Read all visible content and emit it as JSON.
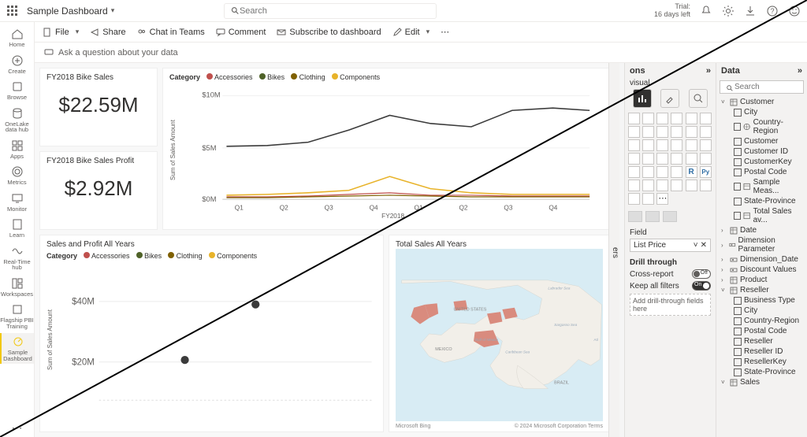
{
  "header": {
    "title": "Sample Dashboard",
    "search_placeholder": "Search",
    "trial_label": "Trial:",
    "trial_days": "16 days left"
  },
  "leftrail": [
    {
      "label": "Home"
    },
    {
      "label": "Create"
    },
    {
      "label": "Browse"
    },
    {
      "label": "OneLake data hub"
    },
    {
      "label": "Apps"
    },
    {
      "label": "Metrics"
    },
    {
      "label": "Monitor"
    },
    {
      "label": "Learn"
    },
    {
      "label": "Real-Time hub"
    },
    {
      "label": "Workspaces"
    },
    {
      "label": "Flagship PBI Training"
    },
    {
      "label": "Sample Dashboard"
    }
  ],
  "toolbar": {
    "file": "File",
    "share": "Share",
    "chat": "Chat in Teams",
    "comment": "Comment",
    "subscribe": "Subscribe to dashboard",
    "edit": "Edit"
  },
  "qbar": {
    "text": "Ask a question about your data"
  },
  "cards": {
    "bike_sales": {
      "title": "FY2018 Bike Sales",
      "value": "$22.59M"
    },
    "bike_profit": {
      "title": "FY2018 Bike Sales Profit",
      "value": "$2.92M"
    }
  },
  "line_chart": {
    "legend_label": "Category",
    "categories": [
      "Accessories",
      "Bikes",
      "Clothing",
      "Components"
    ],
    "category_colors": [
      "#c0504d",
      "#4f6228",
      "#7f6000",
      "#e8b32a"
    ],
    "ylabel": "Sum of Sales Amount",
    "yticks": [
      "$0M",
      "$5M",
      "$10M"
    ],
    "xlabel": "FY2018",
    "xticks": [
      "Q1",
      "Q2",
      "Q3",
      "Q4",
      "Q1",
      "Q2",
      "Q3",
      "Q4"
    ],
    "series": {
      "bikes_y": [
        5.2,
        5.3,
        5.6,
        6.8,
        8.2,
        7.4,
        7.0,
        8.6,
        8.9,
        8.6
      ],
      "components_y": [
        0.4,
        0.5,
        0.6,
        0.9,
        2.2,
        1.0,
        0.6,
        0.5,
        0.5,
        0.5
      ],
      "accessories_y": [
        0.2,
        0.25,
        0.3,
        0.5,
        0.6,
        0.4,
        0.35,
        0.3,
        0.3,
        0.3
      ],
      "clothing_y": [
        0.15,
        0.18,
        0.2,
        0.3,
        0.35,
        0.28,
        0.25,
        0.22,
        0.22,
        0.22
      ]
    },
    "ylim": [
      0,
      11
    ],
    "colors": {
      "bikes": "#3b3b3b",
      "components": "#e8b32a",
      "accessories": "#c0504d",
      "clothing": "#7f6000"
    },
    "grid_color": "#e6e6e6"
  },
  "small_chart": {
    "title": "Sales and Profit All Years",
    "legend_label": "Category",
    "categories": [
      "Accessories",
      "Bikes",
      "Clothing",
      "Components"
    ],
    "category_colors": [
      "#c0504d",
      "#4f6228",
      "#7f6000",
      "#e8b32a"
    ],
    "ylabel": "Sum of Sales Amount",
    "yticks": [
      "$20M",
      "$40M"
    ],
    "points": [
      {
        "x": 0.35,
        "y": 37,
        "color": "#3b3b3b"
      },
      {
        "x": 0.22,
        "y": 20,
        "color": "#3b3b3b"
      }
    ],
    "ylim": [
      0,
      45
    ]
  },
  "map_card": {
    "title": "Total Sales All Years",
    "attribution_left": "Microsoft Bing",
    "attribution_right": "© 2024 Microsoft Corporation  Terms",
    "labels": [
      "UNITED STATES",
      "MEXICO",
      "BRAZIL",
      "Gulf of Mexico",
      "Caribbean Sea",
      "Sargasso Sea",
      "Labrador Sea",
      "Atl"
    ],
    "highlight_color": "#d98b7e",
    "land_color": "#f2efe9",
    "water_color": "#d8ecf4"
  },
  "vis_pane": {
    "title_short": "ons",
    "subtitle": "visual",
    "field_section": "Field",
    "field_value": "List Price",
    "drill_title": "Drill through",
    "cross_report": "Cross-report",
    "keep_filters": "Keep all filters",
    "add_fields": "Add drill-through fields here",
    "toggles": {
      "cross_report_on": false,
      "keep_filters_on": true,
      "off_text": "Off",
      "on_text": "On"
    }
  },
  "filters_label": "ers",
  "data_pane": {
    "title": "Data",
    "search_placeholder": "Search",
    "tree": [
      {
        "label": "Customer",
        "expanded": true,
        "children": [
          {
            "label": "City"
          },
          {
            "label": "Country-Region",
            "icon": "globe"
          },
          {
            "label": "Customer"
          },
          {
            "label": "Customer ID"
          },
          {
            "label": "CustomerKey"
          },
          {
            "label": "Postal Code"
          },
          {
            "label": "Sample Meas...",
            "icon": "measure"
          },
          {
            "label": "State-Province"
          },
          {
            "label": "Total Sales av...",
            "icon": "measure"
          }
        ]
      },
      {
        "label": "Date",
        "expanded": false
      },
      {
        "label": "Dimension Parameter",
        "expanded": false,
        "icon": "param"
      },
      {
        "label": "Dimension_Date",
        "expanded": false,
        "icon": "param"
      },
      {
        "label": "Discount Values",
        "expanded": false,
        "icon": "param"
      },
      {
        "label": "Product",
        "expanded": false
      },
      {
        "label": "Reseller",
        "expanded": true,
        "children": [
          {
            "label": "Business Type"
          },
          {
            "label": "City"
          },
          {
            "label": "Country-Region"
          },
          {
            "label": "Postal Code"
          },
          {
            "label": "Reseller"
          },
          {
            "label": "Reseller ID"
          },
          {
            "label": "ResellerKey"
          },
          {
            "label": "State-Province"
          }
        ]
      },
      {
        "label": "Sales",
        "expanded": true
      }
    ]
  }
}
